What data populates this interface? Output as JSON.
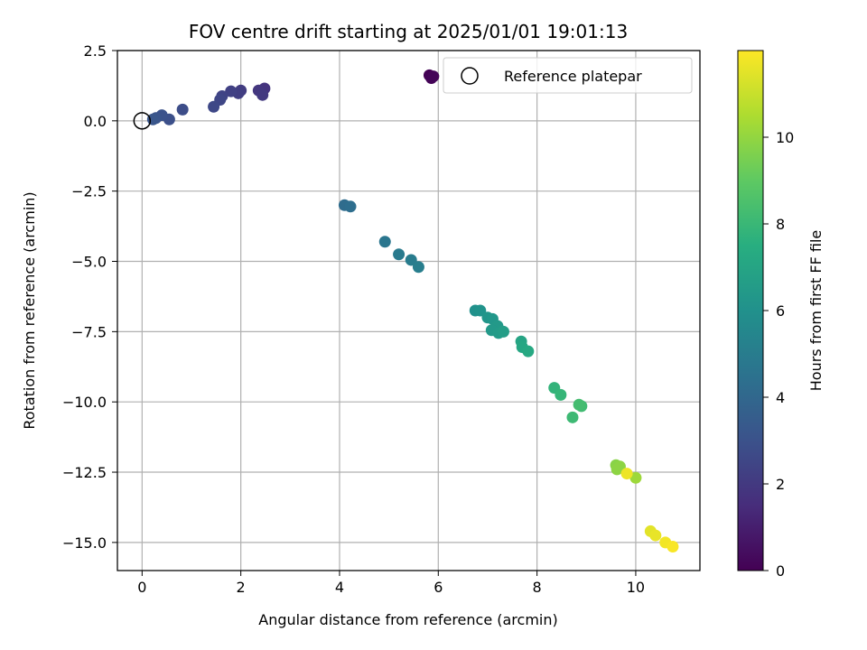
{
  "chart_data": {
    "type": "scatter",
    "title": "FOV centre drift starting at 2025/01/01 19:01:13",
    "xlabel": "Angular distance from reference (arcmin)",
    "ylabel": "Rotation from reference (arcmin)",
    "xlim": [
      -0.5,
      11.3
    ],
    "ylim": [
      -16.0,
      2.5
    ],
    "xticks": [
      0,
      2,
      4,
      6,
      8,
      10
    ],
    "xtick_labels": [
      "0",
      "2",
      "4",
      "6",
      "8",
      "10"
    ],
    "yticks": [
      2.5,
      0.0,
      -2.5,
      -5.0,
      -7.5,
      -10.0,
      -12.5,
      -15.0
    ],
    "ytick_labels": [
      "2.5",
      "0.0",
      "−2.5",
      "−5.0",
      "−7.5",
      "−10.0",
      "−12.5",
      "−15.0"
    ],
    "grid": true,
    "legend": {
      "position": "top-right",
      "entries": [
        "Reference platepar"
      ]
    },
    "reference_point": {
      "x": 0.0,
      "y": 0.0
    },
    "colorbar": {
      "label": "Hours from first FF file",
      "range": [
        0,
        12
      ],
      "ticks": [
        0,
        2,
        4,
        6,
        8,
        10
      ],
      "tick_labels": [
        "0",
        "2",
        "4",
        "6",
        "8",
        "10"
      ],
      "colormap": "viridis"
    },
    "points": [
      {
        "x": 5.82,
        "y": 1.62,
        "c": 0.0
      },
      {
        "x": 5.86,
        "y": 1.52,
        "c": 0.1
      },
      {
        "x": 5.9,
        "y": 1.58,
        "c": 0.15
      },
      {
        "x": 2.48,
        "y": 1.15,
        "c": 1.8
      },
      {
        "x": 2.36,
        "y": 1.08,
        "c": 1.9
      },
      {
        "x": 2.44,
        "y": 0.92,
        "c": 2.0
      },
      {
        "x": 2.0,
        "y": 1.08,
        "c": 2.1
      },
      {
        "x": 1.95,
        "y": 0.98,
        "c": 2.2
      },
      {
        "x": 1.8,
        "y": 1.05,
        "c": 2.3
      },
      {
        "x": 1.62,
        "y": 0.88,
        "c": 2.4
      },
      {
        "x": 1.58,
        "y": 0.75,
        "c": 2.5
      },
      {
        "x": 1.45,
        "y": 0.5,
        "c": 2.6
      },
      {
        "x": 0.82,
        "y": 0.4,
        "c": 2.8
      },
      {
        "x": 0.55,
        "y": 0.05,
        "c": 2.9
      },
      {
        "x": 0.4,
        "y": 0.2,
        "c": 3.0
      },
      {
        "x": 0.28,
        "y": 0.1,
        "c": 3.1
      },
      {
        "x": 0.22,
        "y": 0.05,
        "c": 3.2
      },
      {
        "x": 4.1,
        "y": -3.0,
        "c": 4.2
      },
      {
        "x": 4.22,
        "y": -3.05,
        "c": 4.3
      },
      {
        "x": 4.92,
        "y": -4.3,
        "c": 4.7
      },
      {
        "x": 5.2,
        "y": -4.75,
        "c": 4.9
      },
      {
        "x": 5.45,
        "y": -4.95,
        "c": 5.0
      },
      {
        "x": 5.6,
        "y": -5.2,
        "c": 5.1
      },
      {
        "x": 6.75,
        "y": -6.75,
        "c": 6.0
      },
      {
        "x": 6.85,
        "y": -6.75,
        "c": 6.1
      },
      {
        "x": 7.0,
        "y": -7.0,
        "c": 6.2
      },
      {
        "x": 7.1,
        "y": -7.05,
        "c": 6.3
      },
      {
        "x": 7.2,
        "y": -7.3,
        "c": 6.4
      },
      {
        "x": 7.08,
        "y": -7.45,
        "c": 6.4
      },
      {
        "x": 7.22,
        "y": -7.55,
        "c": 6.5
      },
      {
        "x": 7.32,
        "y": -7.5,
        "c": 6.6
      },
      {
        "x": 7.68,
        "y": -7.85,
        "c": 7.0
      },
      {
        "x": 7.7,
        "y": -8.05,
        "c": 7.1
      },
      {
        "x": 7.82,
        "y": -8.2,
        "c": 7.2
      },
      {
        "x": 8.35,
        "y": -9.5,
        "c": 7.8
      },
      {
        "x": 8.48,
        "y": -9.75,
        "c": 7.9
      },
      {
        "x": 8.9,
        "y": -10.15,
        "c": 8.2
      },
      {
        "x": 8.85,
        "y": -10.1,
        "c": 8.3
      },
      {
        "x": 8.72,
        "y": -10.55,
        "c": 8.1
      },
      {
        "x": 9.6,
        "y": -12.25,
        "c": 9.8
      },
      {
        "x": 9.68,
        "y": -12.3,
        "c": 9.9
      },
      {
        "x": 9.62,
        "y": -12.4,
        "c": 9.9
      },
      {
        "x": 10.0,
        "y": -12.7,
        "c": 10.2
      },
      {
        "x": 9.82,
        "y": -12.55,
        "c": 11.7
      },
      {
        "x": 10.3,
        "y": -14.6,
        "c": 11.5
      },
      {
        "x": 10.4,
        "y": -14.75,
        "c": 11.6
      },
      {
        "x": 10.6,
        "y": -15.0,
        "c": 11.8
      },
      {
        "x": 10.75,
        "y": -15.15,
        "c": 11.9
      }
    ]
  }
}
